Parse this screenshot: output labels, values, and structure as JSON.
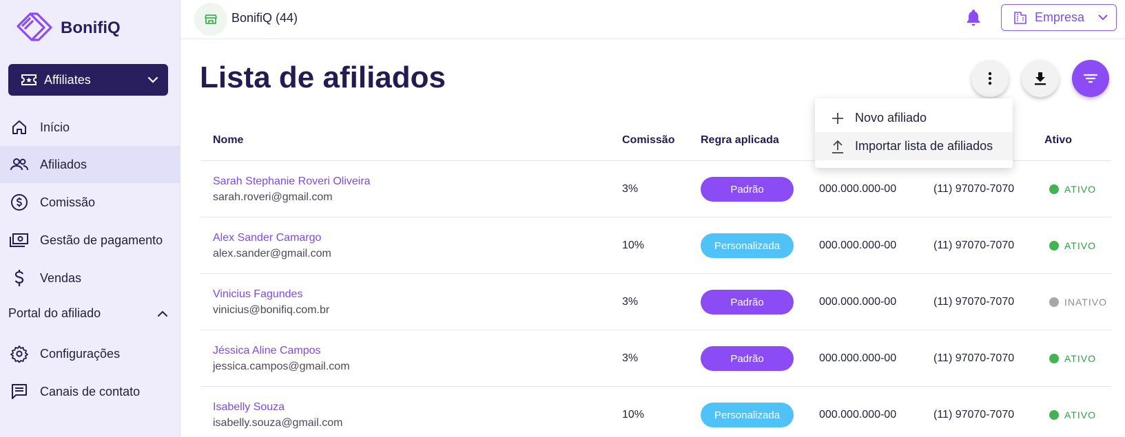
{
  "brand": {
    "name": "BonifiQ",
    "accent": "#8b4cf5",
    "dark": "#2a1f5e"
  },
  "sidebar": {
    "app_select": {
      "label": "Affiliates",
      "icon": "ticket-icon"
    },
    "items": [
      {
        "label": "Início",
        "icon": "home-icon"
      },
      {
        "label": "Afiliados",
        "icon": "users-icon"
      },
      {
        "label": "Comissão",
        "icon": "dollar-circle-icon"
      },
      {
        "label": "Gestão de pagamento",
        "icon": "payment-icon"
      },
      {
        "label": "Vendas",
        "icon": "dollar-icon"
      }
    ],
    "section": {
      "label": "Portal do afiliado"
    },
    "section_items": [
      {
        "label": "Configurações",
        "icon": "gear-icon"
      },
      {
        "label": "Canais de contato",
        "icon": "chat-icon"
      }
    ]
  },
  "topbar": {
    "store": "BonifiQ (44)",
    "company": "Empresa"
  },
  "page": {
    "title": "Lista de afiliados"
  },
  "menu": {
    "items": [
      "Novo afiliado",
      "Importar lista de afiliados"
    ]
  },
  "table": {
    "headers": {
      "name": "Nome",
      "commission": "Comissão",
      "rule": "Regra aplicada",
      "active": "Ativo"
    },
    "rows": [
      {
        "name": "Sarah Stephanie Roveri Oliveira",
        "email": "sarah.roveri@gmail.com",
        "commission": "3%",
        "rule": "Padrão",
        "rule_type": "padrao",
        "cpf": "000.000.000-00",
        "phone": "(11) 97070-7070",
        "status": "ATIVO",
        "active": true
      },
      {
        "name": "Alex Sander Camargo",
        "email": "alex.sander@gmail.com",
        "commission": "10%",
        "rule": "Personalizada",
        "rule_type": "personalizada",
        "cpf": "000.000.000-00",
        "phone": "(11) 97070-7070",
        "status": "ATIVO",
        "active": true
      },
      {
        "name": "Vinicius Fagundes",
        "email": "vinicius@bonifiq.com.br",
        "commission": "3%",
        "rule": "Padrão",
        "rule_type": "padrao",
        "cpf": "000.000.000-00",
        "phone": "(11) 97070-7070",
        "status": "INATIVO",
        "active": false
      },
      {
        "name": "Jéssica Aline Campos",
        "email": "jessica.campos@gmail.com",
        "commission": "3%",
        "rule": "Padrão",
        "rule_type": "padrao",
        "cpf": "000.000.000-00",
        "phone": "(11) 97070-7070",
        "status": "ATIVO",
        "active": true
      },
      {
        "name": "Isabelly Souza",
        "email": "isabelly.souza@gmail.com",
        "commission": "10%",
        "rule": "Personalizada",
        "rule_type": "personalizada",
        "cpf": "000.000.000-00",
        "phone": "(11) 97070-7070",
        "status": "ATIVO",
        "active": true
      }
    ]
  }
}
